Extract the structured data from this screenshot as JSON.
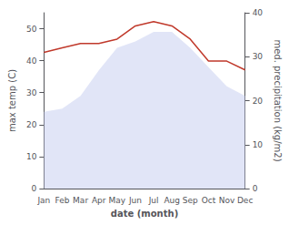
{
  "chart_data": {
    "type": "line",
    "xlabel": "date (month)",
    "ylabel": "max temp (C)",
    "y2label": "med. precipitation (kg/m2)",
    "categories": [
      "Jan",
      "Feb",
      "Mar",
      "Apr",
      "May",
      "Jun",
      "Jul",
      "Aug",
      "Sep",
      "Oct",
      "Nov",
      "Dec"
    ],
    "series": [
      {
        "type": "area",
        "color": "#c8d0f0",
        "values": [
          24,
          25,
          29,
          37,
          44,
          46,
          49,
          49,
          44,
          38,
          32,
          29
        ]
      },
      {
        "type": "line",
        "axis": "y2",
        "color": "#c0392b",
        "values": [
          31,
          32,
          33,
          33,
          34,
          37,
          38,
          37,
          34,
          29,
          29,
          27
        ]
      }
    ],
    "ylim": [
      0,
      55
    ],
    "yticks": [
      0,
      10,
      20,
      30,
      40,
      50
    ],
    "y2lim": [
      0,
      40
    ],
    "y2ticks": [
      0,
      10,
      20,
      30,
      40
    ],
    "grid": false
  }
}
